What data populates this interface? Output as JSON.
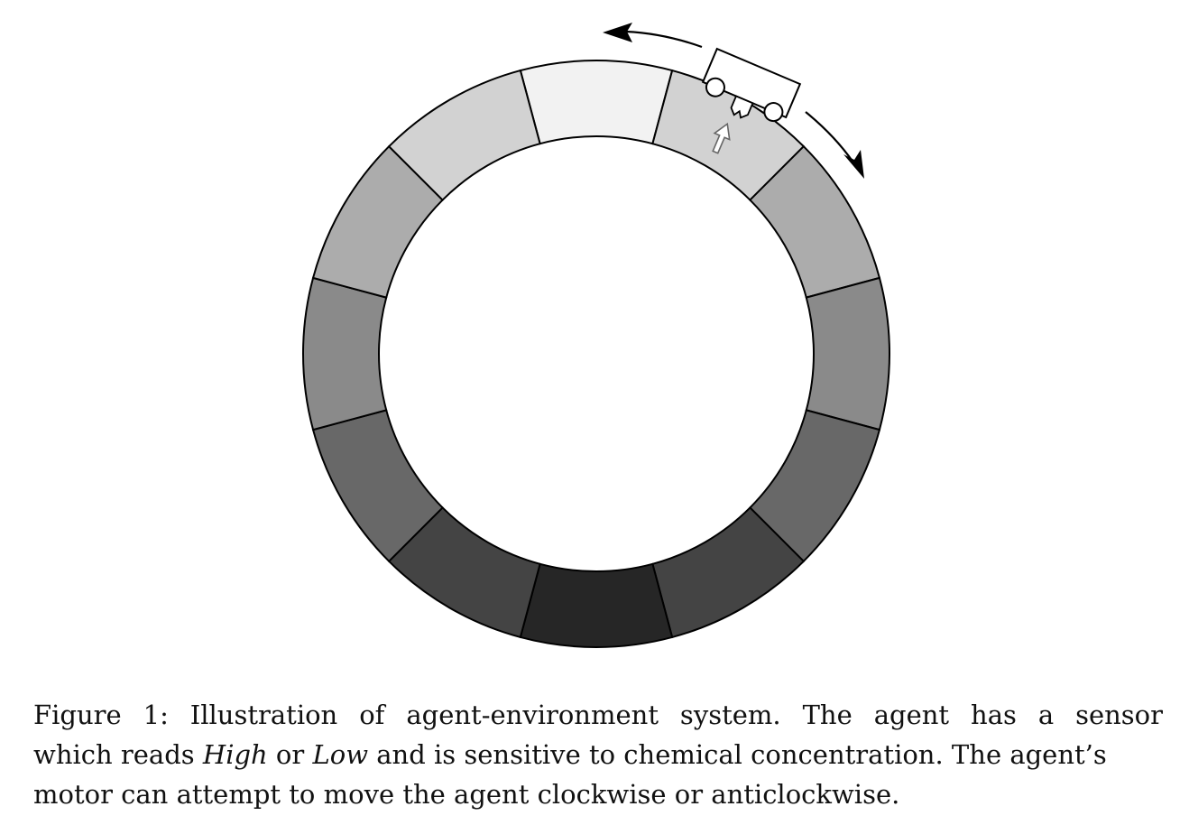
{
  "figure": {
    "segment_shades": [
      "#f2f2f2",
      "#d2d2d2",
      "#acacac",
      "#8a8a8a",
      "#686868",
      "#444444",
      "#262626",
      "#444444",
      "#686868",
      "#8a8a8a",
      "#acacac",
      "#d2d2d2"
    ],
    "ring_stroke": "#000000",
    "agent_fill": "#ffffff",
    "sensor_arrow_stroke": "#666666",
    "motion_arrow_stroke": "#000000"
  },
  "caption": {
    "line1": "Figure 1: Illustration of agent-environment system. The agent has a sensor",
    "line2_pre": "which reads ",
    "line2_high": "High",
    "line2_mid": " or ",
    "line2_low": "Low",
    "line2_post": " and is sensitive to chemical concentration. The agent’s",
    "line3": "motor can attempt to move the agent clockwise or anticlockwise."
  }
}
